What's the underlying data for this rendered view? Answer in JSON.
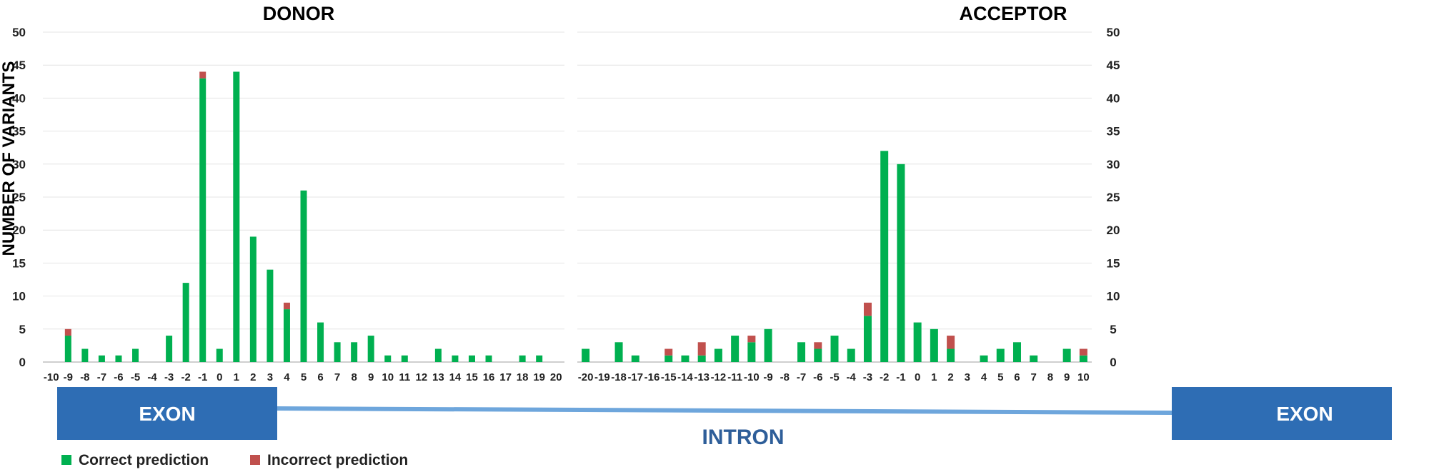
{
  "colors": {
    "correct": "#00b050",
    "incorrect": "#c0504d",
    "exon_box": "#2e6db4",
    "intron_line": "#6ea6dc",
    "grid": "#e4e4e4",
    "axis": "#bfbfbf"
  },
  "y_axis_label": "NUMBER OF VARIANTS",
  "structure": {
    "left_exon": "EXON",
    "intron": "INTRON",
    "right_exon": "EXON"
  },
  "legend": {
    "correct": "Correct prediction",
    "incorrect": "Incorrect prediction"
  },
  "chart_data": [
    {
      "type": "bar",
      "stacked": true,
      "title": "DONOR",
      "ylim": [
        0,
        50
      ],
      "yticks": [
        0,
        5,
        10,
        15,
        20,
        25,
        30,
        35,
        40,
        45,
        50
      ],
      "y_axis_side": "left",
      "grid": true,
      "categories": [
        "-10",
        "-9",
        "-8",
        "-7",
        "-6",
        "-5",
        "-4",
        "-3",
        "-2",
        "-1",
        "0",
        "1",
        "2",
        "3",
        "4",
        "5",
        "6",
        "7",
        "8",
        "9",
        "10",
        "11",
        "12",
        "13",
        "14",
        "15",
        "16",
        "17",
        "18",
        "19",
        "20"
      ],
      "series": [
        {
          "name": "Correct prediction",
          "color": "#00b050",
          "values": [
            0,
            4,
            2,
            1,
            1,
            2,
            0,
            4,
            12,
            43,
            2,
            44,
            19,
            14,
            8,
            26,
            6,
            3,
            3,
            4,
            1,
            1,
            0,
            2,
            1,
            1,
            1,
            0,
            1,
            1,
            0
          ]
        },
        {
          "name": "Incorrect prediction",
          "color": "#c0504d",
          "values": [
            0,
            1,
            0,
            0,
            0,
            0,
            0,
            0,
            0,
            1,
            0,
            0,
            0,
            0,
            1,
            0,
            0,
            0,
            0,
            0,
            0,
            0,
            0,
            0,
            0,
            0,
            0,
            0,
            0,
            0,
            0
          ]
        }
      ]
    },
    {
      "type": "bar",
      "stacked": true,
      "title": "ACCEPTOR",
      "ylim": [
        0,
        50
      ],
      "yticks": [
        0,
        5,
        10,
        15,
        20,
        25,
        30,
        35,
        40,
        45,
        50
      ],
      "y_axis_side": "right",
      "grid": true,
      "categories": [
        "-20",
        "-19",
        "-18",
        "-17",
        "-16",
        "-15",
        "-14",
        "-13",
        "-12",
        "-11",
        "-10",
        "-9",
        "-8",
        "-7",
        "-6",
        "-5",
        "-4",
        "-3",
        "-2",
        "-1",
        "0",
        "1",
        "2",
        "3",
        "4",
        "5",
        "6",
        "7",
        "8",
        "9",
        "10"
      ],
      "series": [
        {
          "name": "Correct prediction",
          "color": "#00b050",
          "values": [
            2,
            0,
            3,
            1,
            0,
            1,
            1,
            1,
            2,
            4,
            3,
            5,
            0,
            3,
            2,
            4,
            2,
            7,
            32,
            30,
            6,
            5,
            2,
            0,
            1,
            2,
            3,
            1,
            0,
            2,
            1
          ]
        },
        {
          "name": "Incorrect prediction",
          "color": "#c0504d",
          "values": [
            0,
            0,
            0,
            0,
            0,
            1,
            0,
            2,
            0,
            0,
            1,
            0,
            0,
            0,
            1,
            0,
            0,
            2,
            0,
            0,
            0,
            0,
            2,
            0,
            0,
            0,
            0,
            0,
            0,
            0,
            1
          ]
        }
      ]
    }
  ]
}
